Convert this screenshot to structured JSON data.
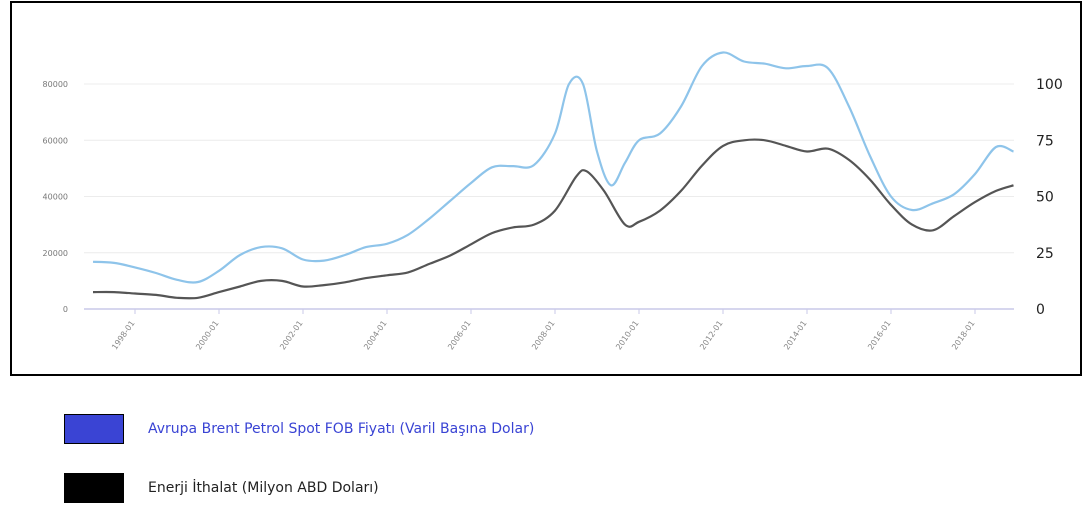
{
  "chart_data": {
    "type": "line",
    "x_ticks": [
      "1998-01",
      "2000-01",
      "2002-01",
      "2004-01",
      "2006-01",
      "2008-01",
      "2010-01",
      "2012-01",
      "2014-01",
      "2016-01",
      "2018-01"
    ],
    "left_axis": {
      "ticks": [
        "0",
        "20000",
        "40000",
        "60000",
        "80000"
      ],
      "ylim": [
        0,
        80000
      ]
    },
    "right_axis": {
      "ticks": [
        "0",
        "25",
        "50",
        "75",
        "100"
      ],
      "ylim": [
        0,
        100
      ]
    },
    "grid": true,
    "legend_position": "bottom-left",
    "series": [
      {
        "name": "Avrupa Brent Petrol Spot FOB Fiyatı (Varil Başına Dolar)",
        "axis": "right",
        "color": "#8ec4ea",
        "legend_color": "#3a44d4",
        "points": [
          [
            "1997-01",
            21
          ],
          [
            "1997-07",
            20.5
          ],
          [
            "1998-01",
            18.5
          ],
          [
            "1998-07",
            16
          ],
          [
            "1999-01",
            13
          ],
          [
            "1999-07",
            12
          ],
          [
            "2000-01",
            17
          ],
          [
            "2000-07",
            24
          ],
          [
            "2001-01",
            27.5
          ],
          [
            "2001-07",
            27
          ],
          [
            "2002-01",
            22
          ],
          [
            "2002-07",
            21.5
          ],
          [
            "2003-01",
            24
          ],
          [
            "2003-07",
            27.5
          ],
          [
            "2004-01",
            29
          ],
          [
            "2004-07",
            33
          ],
          [
            "2005-01",
            40
          ],
          [
            "2005-07",
            48
          ],
          [
            "2006-01",
            56
          ],
          [
            "2006-07",
            63
          ],
          [
            "2007-01",
            63.5
          ],
          [
            "2007-07",
            64
          ],
          [
            "2008-01",
            78
          ],
          [
            "2008-05",
            100
          ],
          [
            "2008-09",
            100
          ],
          [
            "2009-01",
            70
          ],
          [
            "2009-05",
            55
          ],
          [
            "2009-09",
            65
          ],
          [
            "2010-01",
            75
          ],
          [
            "2010-07",
            78
          ],
          [
            "2011-01",
            90
          ],
          [
            "2011-07",
            108
          ],
          [
            "2012-01",
            114
          ],
          [
            "2012-07",
            110
          ],
          [
            "2013-01",
            109
          ],
          [
            "2013-07",
            107
          ],
          [
            "2014-01",
            108
          ],
          [
            "2014-07",
            107
          ],
          [
            "2015-01",
            90
          ],
          [
            "2015-07",
            68
          ],
          [
            "2016-01",
            50
          ],
          [
            "2016-07",
            44
          ],
          [
            "2017-01",
            47
          ],
          [
            "2017-07",
            51
          ],
          [
            "2018-01",
            60
          ],
          [
            "2018-07",
            72
          ],
          [
            "2018-12",
            70
          ]
        ]
      },
      {
        "name": "Enerji İthalat (Milyon ABD Doları)",
        "axis": "left",
        "color": "#555555",
        "legend_color": "#000000",
        "points": [
          [
            "1997-01",
            6000
          ],
          [
            "1997-07",
            6000
          ],
          [
            "1998-01",
            5500
          ],
          [
            "1998-07",
            5000
          ],
          [
            "1999-01",
            4000
          ],
          [
            "1999-07",
            4000
          ],
          [
            "2000-01",
            6000
          ],
          [
            "2000-07",
            8000
          ],
          [
            "2001-01",
            10000
          ],
          [
            "2001-07",
            10000
          ],
          [
            "2002-01",
            8000
          ],
          [
            "2002-07",
            8500
          ],
          [
            "2003-01",
            9500
          ],
          [
            "2003-07",
            11000
          ],
          [
            "2004-01",
            12000
          ],
          [
            "2004-07",
            13000
          ],
          [
            "2005-01",
            16000
          ],
          [
            "2005-07",
            19000
          ],
          [
            "2006-01",
            23000
          ],
          [
            "2006-07",
            27000
          ],
          [
            "2007-01",
            29000
          ],
          [
            "2007-07",
            30000
          ],
          [
            "2008-01",
            35000
          ],
          [
            "2008-07",
            47000
          ],
          [
            "2008-10",
            49000
          ],
          [
            "2009-03",
            42000
          ],
          [
            "2009-09",
            30000
          ],
          [
            "2010-01",
            31000
          ],
          [
            "2010-07",
            35000
          ],
          [
            "2011-01",
            42000
          ],
          [
            "2011-07",
            51000
          ],
          [
            "2012-01",
            58000
          ],
          [
            "2012-07",
            60000
          ],
          [
            "2013-01",
            60000
          ],
          [
            "2013-07",
            58000
          ],
          [
            "2014-01",
            56000
          ],
          [
            "2014-07",
            57000
          ],
          [
            "2015-01",
            53000
          ],
          [
            "2015-07",
            46000
          ],
          [
            "2016-01",
            37000
          ],
          [
            "2016-07",
            30000
          ],
          [
            "2017-01",
            28000
          ],
          [
            "2017-07",
            33000
          ],
          [
            "2018-01",
            38000
          ],
          [
            "2018-07",
            42000
          ],
          [
            "2018-12",
            44000
          ]
        ]
      }
    ]
  },
  "legend": [
    {
      "label": "Avrupa Brent Petrol Spot FOB Fiyatı (Varil Başına Dolar)",
      "swatch_color": "#3a44d4",
      "text_color": "#3a44d4"
    },
    {
      "label": "Enerji İthalat (Milyon ABD Doları)",
      "swatch_color": "#000000",
      "text_color": "#222222"
    }
  ]
}
